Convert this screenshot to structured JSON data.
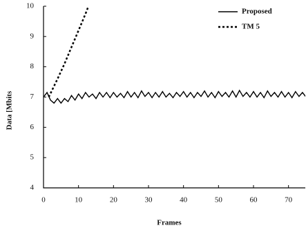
{
  "chart_data": {
    "type": "line",
    "xlabel": "Frames",
    "ylabel": "Data [Mbits",
    "xlim": [
      0,
      75
    ],
    "ylim": [
      4,
      10
    ],
    "xticks": [
      0,
      10,
      20,
      30,
      40,
      50,
      60,
      70
    ],
    "yticks": [
      4,
      5,
      6,
      7,
      8,
      9,
      10
    ],
    "legend": "upper right",
    "series": [
      {
        "name": "Proposed",
        "color": "#000000",
        "linestyle": "solid",
        "x": [
          0,
          1,
          2,
          3,
          4,
          5,
          6,
          7,
          8,
          9,
          10,
          11,
          12,
          13,
          14,
          15,
          16,
          17,
          18,
          19,
          20,
          21,
          22,
          23,
          24,
          25,
          26,
          27,
          28,
          29,
          30,
          31,
          32,
          33,
          34,
          35,
          36,
          37,
          38,
          39,
          40,
          41,
          42,
          43,
          44,
          45,
          46,
          47,
          48,
          49,
          50,
          51,
          52,
          53,
          54,
          55,
          56,
          57,
          58,
          59,
          60,
          61,
          62,
          63,
          64,
          65,
          66,
          67,
          68,
          69,
          70,
          71,
          72,
          73,
          74,
          75
        ],
        "values": [
          7.0,
          7.15,
          6.9,
          6.8,
          6.95,
          6.8,
          6.95,
          6.85,
          7.05,
          6.9,
          7.1,
          6.95,
          7.15,
          7.0,
          7.1,
          6.95,
          7.15,
          7.0,
          7.15,
          6.98,
          7.15,
          7.0,
          7.12,
          6.98,
          7.18,
          7.0,
          7.15,
          6.98,
          7.2,
          7.02,
          7.15,
          6.98,
          7.15,
          7.0,
          7.18,
          7.0,
          7.12,
          6.98,
          7.15,
          7.02,
          7.18,
          7.0,
          7.15,
          6.98,
          7.15,
          7.02,
          7.2,
          7.0,
          7.15,
          6.98,
          7.18,
          7.02,
          7.15,
          7.0,
          7.2,
          7.0,
          7.22,
          7.02,
          7.15,
          7.0,
          7.18,
          7.0,
          7.15,
          6.98,
          7.2,
          7.02,
          7.15,
          7.0,
          7.18,
          7.0,
          7.15,
          6.98,
          7.18,
          7.02,
          7.15,
          7.0
        ]
      },
      {
        "name": "TM 5",
        "color": "#000000",
        "linestyle": "dotted",
        "x": [
          1.5,
          4,
          6,
          8,
          10,
          12,
          13
        ],
        "values": [
          7.0,
          7.6,
          8.1,
          8.65,
          9.2,
          9.75,
          10.05
        ]
      }
    ]
  }
}
